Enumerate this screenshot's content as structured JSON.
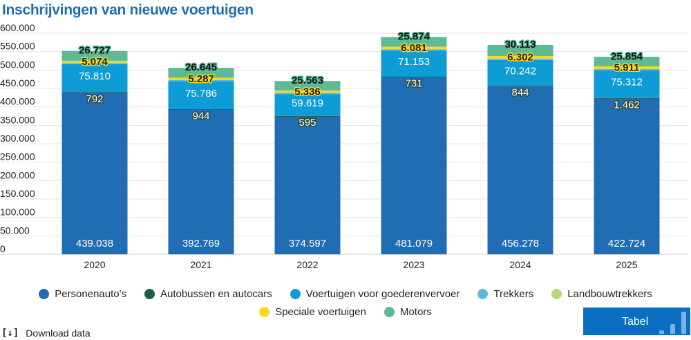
{
  "title": "Inschrijvingen van nieuwe voertuigen",
  "chart_data": {
    "type": "bar",
    "stacked": true,
    "title": "Inschrijvingen van nieuwe voertuigen",
    "categories": [
      "2020",
      "2021",
      "2022",
      "2023",
      "2024",
      "2025"
    ],
    "ylim": [
      0,
      600000
    ],
    "y_ticks": [
      "0",
      "50.000",
      "100.000",
      "150.000",
      "200.000",
      "250.000",
      "300.000",
      "350.000",
      "400.000",
      "450.000",
      "500.000",
      "550.000",
      "600.000"
    ],
    "grid": true,
    "legend_position": "bottom",
    "series": [
      {
        "name": "Personenauto's",
        "color": "#206db3",
        "values": [
          439038,
          392769,
          374597,
          481079,
          456278,
          422724
        ],
        "labels": [
          "439.038",
          "392.769",
          "374.597",
          "481.079",
          "456.278",
          "422.724"
        ]
      },
      {
        "name": "Autobussen en autocars",
        "color": "#1d5e48",
        "values": [
          792,
          944,
          595,
          731,
          844,
          1462
        ],
        "labels": [
          "792",
          "944",
          "595",
          "731",
          "844",
          "1.462"
        ]
      },
      {
        "name": "Voertuigen voor goederenvervoer",
        "color": "#0e9cd7",
        "values": [
          75810,
          75786,
          59619,
          71153,
          70242,
          75312
        ],
        "labels": [
          "75.810",
          "75.786",
          "59.619",
          "71.153",
          "70.242",
          "75.312"
        ]
      },
      {
        "name": "Trekkers",
        "color": "#5db8e6",
        "values": [
          3000,
          3000,
          3000,
          3000,
          3000,
          3000
        ]
      },
      {
        "name": "Landbouwtrekkers",
        "color": "#b7d67c",
        "values": [
          1500,
          1500,
          1500,
          1500,
          1500,
          1500
        ]
      },
      {
        "name": "Speciale voertuigen",
        "color": "#f8d81c",
        "values": [
          5074,
          5287,
          5336,
          6081,
          6302,
          5911
        ],
        "labels": [
          "5.074",
          "5.287",
          "5.336",
          "6.081",
          "6.302",
          "5.911"
        ]
      },
      {
        "name": "Motors",
        "color": "#5cba94",
        "values": [
          26727,
          26645,
          25563,
          25874,
          30113,
          25854
        ],
        "labels": [
          "26.727",
          "26.645",
          "25.563",
          "25.874",
          "30.113",
          "25.854"
        ]
      }
    ]
  },
  "download_label": "Download data",
  "tabel_label": "Tabel"
}
